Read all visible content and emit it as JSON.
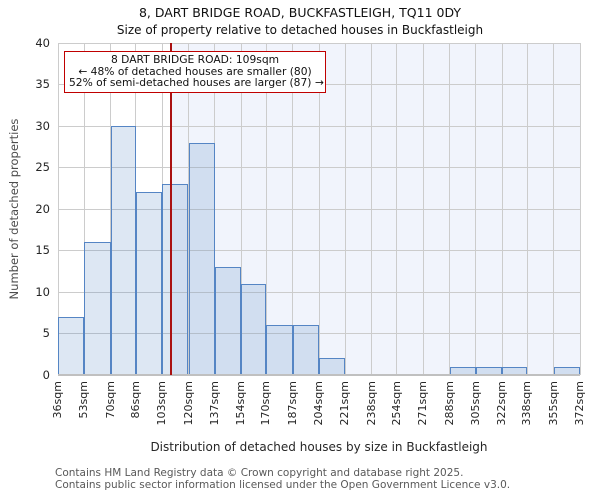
{
  "chart_data": {
    "type": "bar",
    "title": "8, DART BRIDGE ROAD, BUCKFASTLEIGH, TQ11 0DY",
    "subtitle": "Size of property relative to detached houses in Buckfastleigh",
    "xlabel": "Distribution of detached houses by size in Buckfastleigh",
    "ylabel": "Number of detached properties",
    "bin_edges": [
      36,
      53,
      70,
      86,
      103,
      120,
      137,
      154,
      170,
      187,
      204,
      221,
      238,
      254,
      271,
      288,
      305,
      322,
      338,
      355,
      372
    ],
    "x_tick_labels": [
      "36sqm",
      "53sqm",
      "70sqm",
      "86sqm",
      "103sqm",
      "120sqm",
      "137sqm",
      "154sqm",
      "170sqm",
      "187sqm",
      "204sqm",
      "221sqm",
      "238sqm",
      "254sqm",
      "271sqm",
      "288sqm",
      "305sqm",
      "322sqm",
      "338sqm",
      "355sqm",
      "372sqm"
    ],
    "values": [
      7,
      16,
      30,
      22,
      23,
      28,
      13,
      11,
      6,
      6,
      2,
      0,
      0,
      0,
      0,
      1,
      1,
      1,
      0,
      1
    ],
    "ylim": [
      0,
      40
    ],
    "ytick_step": 5,
    "grid": true,
    "legend": null,
    "marker": {
      "value_sqm": 109,
      "color": "#aa1111",
      "shade_right_of_marker": true
    },
    "annotation": {
      "line1": "8 DART BRIDGE ROAD: 109sqm",
      "line2": "← 48% of detached houses are smaller (80)",
      "line3": "52% of semi-detached houses are larger (87) →",
      "border_color": "#c00000"
    },
    "colors": {
      "bar_fill": "rgba(85,133,196,0.2)",
      "bar_edge": "#5585c4",
      "grid": "#cccccc",
      "shade": "#f1f4fc",
      "axis_line": "#c0c0c0"
    }
  },
  "footer": {
    "line1": "Contains HM Land Registry data © Crown copyright and database right 2025.",
    "line2": "Contains public sector information licensed under the Open Government Licence v3.0."
  }
}
